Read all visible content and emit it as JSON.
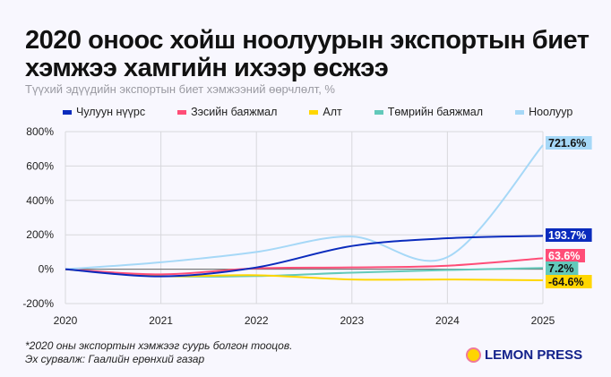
{
  "title": "2020 оноос хойш ноолуурын экспортын биет хэмжээ хамгийн ихээр өсжээ",
  "subtitle": "Түүхий эдүүдийн экспортын биет хэмжээний өөрчлөлт, %",
  "note": "*2020 оны экспортын хэмжээг суурь болгон тооцов.",
  "source": "Эх сурвалж: Гаалийн ерөнхий газар",
  "logo": "LEMON PRESS",
  "chart_data": {
    "type": "line",
    "x": [
      2020,
      2021,
      2022,
      2023,
      2024,
      2025
    ],
    "ylim": [
      -200,
      800
    ],
    "yticks": [
      "800%",
      "600%",
      "400%",
      "200%",
      "0%",
      "-200%"
    ],
    "ytick_values": [
      800,
      600,
      400,
      200,
      0,
      -200
    ],
    "xticks": [
      "2020",
      "2021",
      "2022",
      "2023",
      "2024",
      "2025"
    ],
    "grid": true,
    "legend_placement": "top",
    "series": [
      {
        "name": "Чулуун нүүрс",
        "color": "#0a2bbd",
        "values": [
          0,
          -42,
          10,
          135,
          180,
          193.7
        ],
        "label": "193.7%",
        "label_text_color": "#ffffff"
      },
      {
        "name": "Зэсийн баяжмал",
        "color": "#ff4d77",
        "values": [
          0,
          -30,
          5,
          10,
          20,
          63.6
        ],
        "label": "63.6%",
        "label_text_color": "#ffffff"
      },
      {
        "name": "Алт",
        "color": "#ffd600",
        "values": [
          0,
          -40,
          -35,
          -60,
          -60,
          -64.6
        ],
        "label": "-64.6%",
        "label_text_color": "#111111"
      },
      {
        "name": "Төмрийн баяжмал",
        "color": "#62c9ba",
        "values": [
          0,
          -40,
          -40,
          -20,
          -5,
          7.2
        ],
        "label": "7.2%",
        "label_text_color": "#111111"
      },
      {
        "name": "Ноолуур",
        "color": "#a6d8f7",
        "values": [
          0,
          40,
          100,
          190,
          70,
          721.6
        ],
        "label": "721.6%",
        "label_text_color": "#111111"
      }
    ]
  }
}
